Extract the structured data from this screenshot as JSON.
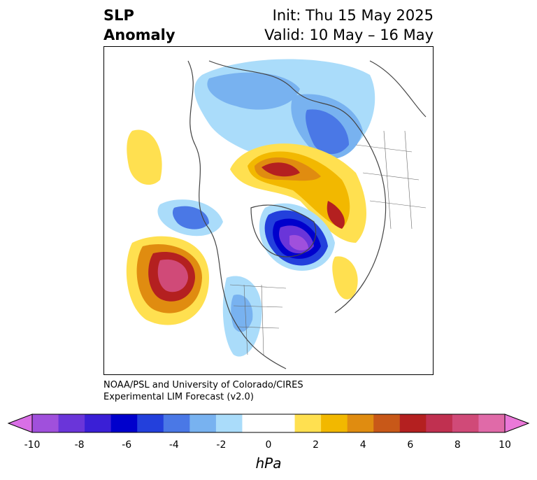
{
  "title": {
    "left_line1": "SLP",
    "left_line2": "Anomaly",
    "right_line1": "Init: Thu 15 May 2025",
    "right_line2": "Valid: 10 May – 16 May"
  },
  "credit": {
    "line1": "NOAA/PSL and University of Colorado/CIRES",
    "line2": "Experimental LIM Forecast (v2.0)"
  },
  "colorbar": {
    "units": "hPa",
    "ticks": [
      "-10",
      "-8",
      "-6",
      "-4",
      "-2",
      "0",
      "2",
      "4",
      "6",
      "8",
      "10"
    ],
    "colors": [
      "#d96fe6",
      "#a050dc",
      "#6a35d9",
      "#3a1fd6",
      "#0000cc",
      "#2340dc",
      "#4a78e6",
      "#78b2f0",
      "#aadcfa",
      "#ffffff",
      "#ffffff",
      "#ffe050",
      "#f2b800",
      "#e08c10",
      "#c85818",
      "#b42020",
      "#c03050",
      "#d04a78",
      "#e06aa8",
      "#ea78d8"
    ]
  }
}
